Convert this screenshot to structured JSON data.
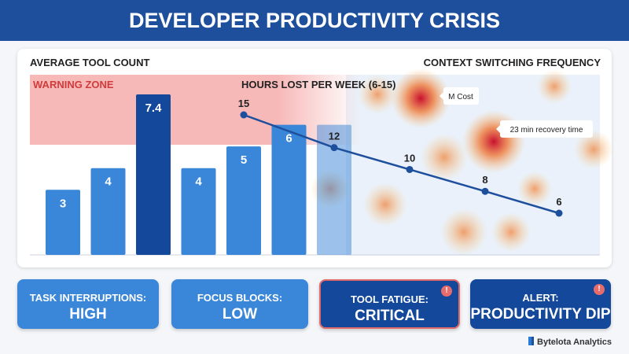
{
  "title": "DEVELOPER PRODUCTIVITY CRISIS",
  "chart_data": [
    {
      "type": "bar",
      "title": "AVERAGE TOOL COUNT",
      "values": [
        3,
        4,
        7.4,
        4,
        5,
        6,
        6
      ],
      "labels": [
        "3",
        "4",
        "7.4",
        "4",
        "5",
        "6",
        ""
      ],
      "highlight_index": 2,
      "annotation": "WARNING ZONE",
      "colors": {
        "bar": "#3a86d8",
        "highlight": "#13489a",
        "warning": "#f7b8b8"
      }
    },
    {
      "type": "line",
      "title": "HOURS LOST PER WEEK (6-15)",
      "values": [
        15,
        12,
        10,
        8,
        6
      ],
      "ylim": [
        6,
        15
      ],
      "color": "#1d4f9c"
    },
    {
      "type": "heatmap",
      "title": "CONTEXT SWITCHING FREQUENCY",
      "annotations": [
        "M Cost",
        "23 min recovery time"
      ]
    }
  ],
  "cards": [
    {
      "label": "TASK INTERRUPTIONS:",
      "value": "HIGH",
      "alert": false
    },
    {
      "label": "FOCUS BLOCKS:",
      "value": "LOW",
      "alert": false
    },
    {
      "label": "TOOL FATIGUE:",
      "value": "CRITICAL",
      "alert": true
    },
    {
      "label": "ALERT:",
      "value": "PRODUCTIVITY DIP",
      "alert": true
    }
  ],
  "alert_symbol": "!",
  "brand": "Bytelota Analytics"
}
